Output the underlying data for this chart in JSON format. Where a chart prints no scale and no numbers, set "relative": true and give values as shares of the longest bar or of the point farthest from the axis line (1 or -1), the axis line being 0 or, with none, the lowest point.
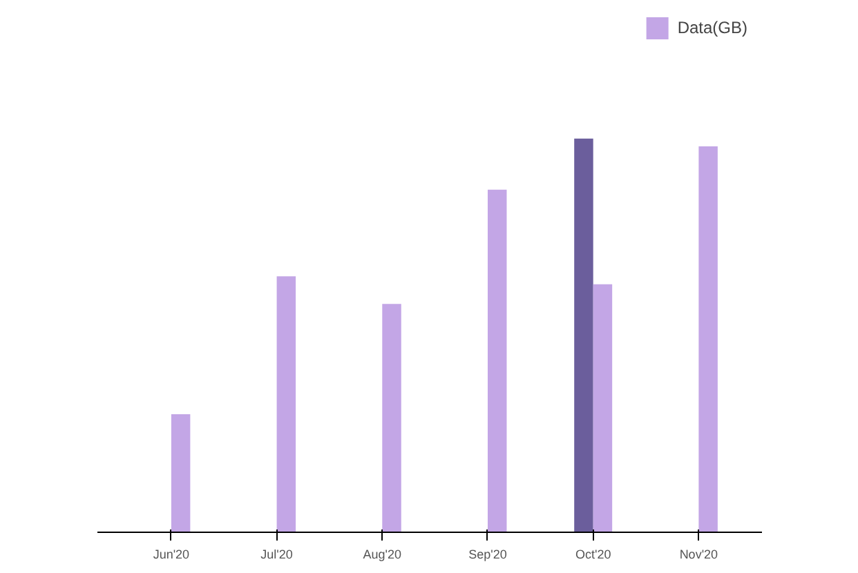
{
  "chart_data": {
    "type": "bar",
    "relative": true,
    "categories": [
      "Jun'20",
      "Jul'20",
      "Aug'20",
      "Sep'20",
      "Oct'20",
      "Nov'20"
    ],
    "series": [
      {
        "color": "#6b5e9c",
        "values": [
          0,
          0,
          0,
          0,
          1,
          0
        ]
      },
      {
        "name": "Data(GB)",
        "color": "#c3a6e6",
        "values": [
          0.3,
          0.65,
          0.58,
          0.87,
          0.63,
          0.98
        ]
      }
    ],
    "legend": "top right"
  }
}
